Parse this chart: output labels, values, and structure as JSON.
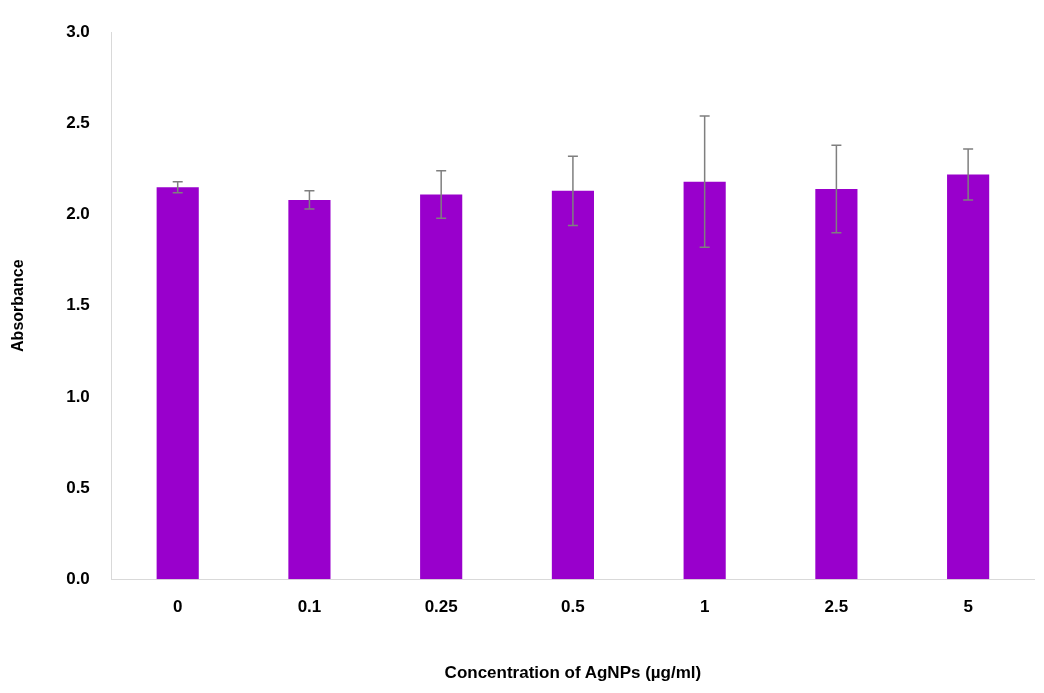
{
  "chart_data": {
    "type": "bar",
    "xlabel": "Concentration of AgNPs (µg/ml)",
    "ylabel": "Absorbance",
    "categories": [
      "0",
      "0.1",
      "0.25",
      "0.5",
      "1",
      "2.5",
      "5"
    ],
    "values": [
      2.15,
      2.08,
      2.11,
      2.13,
      2.18,
      2.14,
      2.22
    ],
    "errors": [
      0.03,
      0.05,
      0.13,
      0.19,
      0.36,
      0.24,
      0.14
    ],
    "color": "#9900cc",
    "ylim": [
      0,
      3
    ],
    "yticks": [
      {
        "value": 0,
        "label": "0.0"
      },
      {
        "value": 0.5,
        "label": "0.5"
      },
      {
        "value": 1,
        "label": "1.0"
      },
      {
        "value": 1.5,
        "label": "1.5"
      },
      {
        "value": 2,
        "label": "2.0"
      },
      {
        "value": 2.5,
        "label": "2.5"
      },
      {
        "value": 3,
        "label": "3.0"
      }
    ],
    "grid": false
  }
}
